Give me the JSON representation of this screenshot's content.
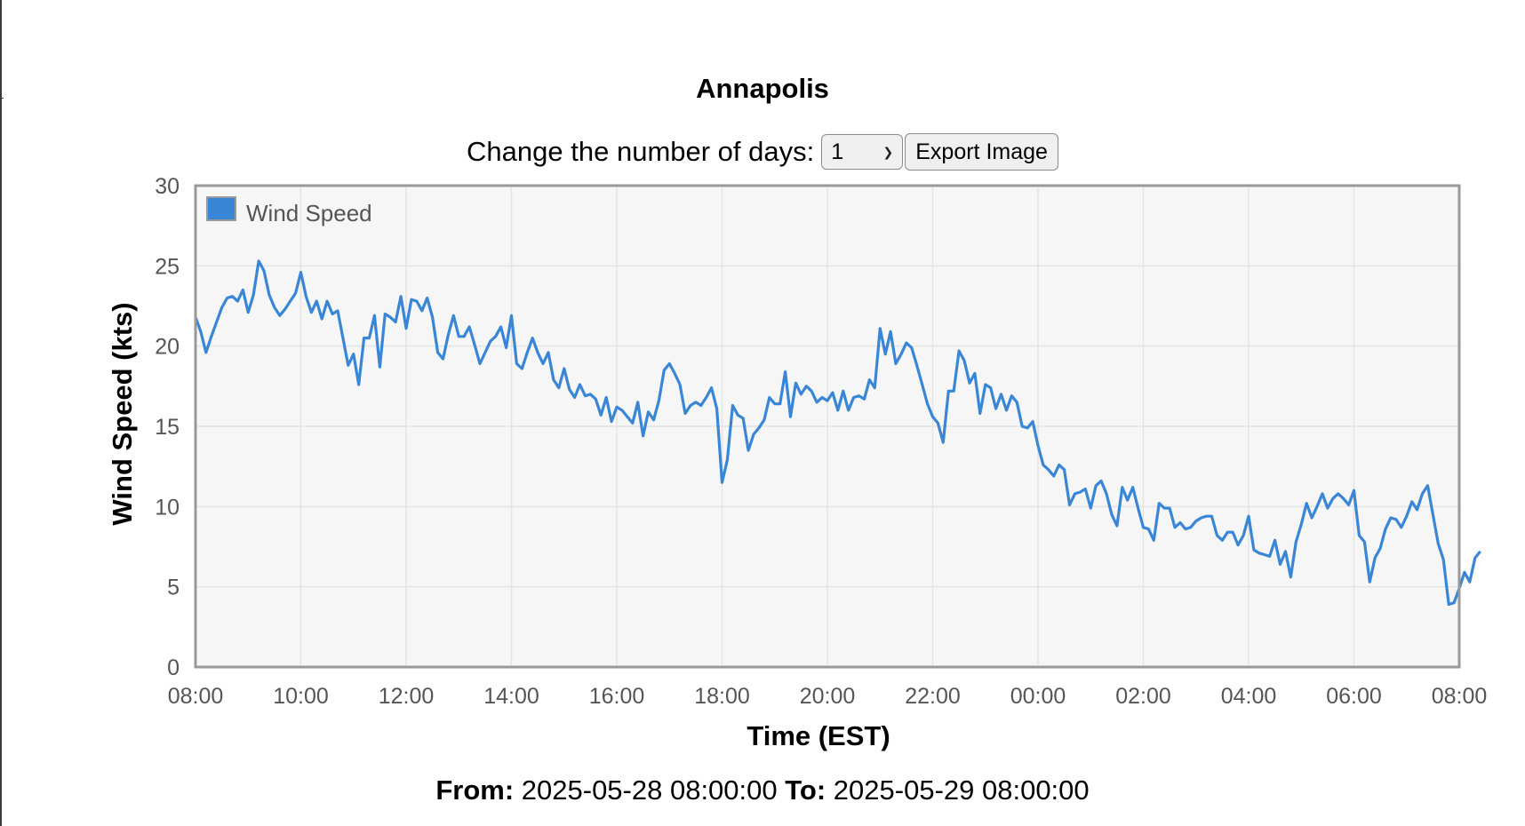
{
  "page": {
    "title": "Annapolis",
    "controls_label": "Change the number of days:",
    "days_select": {
      "selected": "1"
    },
    "export_label": "Export Image",
    "from_label": "From:",
    "from_value": "2025-05-28 08:00:00",
    "to_label": "To:",
    "to_value": "2025-05-29 08:00:00"
  },
  "chart_data": {
    "type": "line",
    "xlabel": "Time (EST)",
    "ylabel": "Wind Speed (kts)",
    "ylim": [
      0,
      30
    ],
    "yticks": [
      0,
      5,
      10,
      15,
      20,
      25,
      30
    ],
    "xlim": [
      "2025-05-28 08:00",
      "2025-05-29 08:00"
    ],
    "xtick_labels": [
      "08:00",
      "10:00",
      "12:00",
      "14:00",
      "16:00",
      "18:00",
      "20:00",
      "22:00",
      "00:00",
      "02:00",
      "04:00",
      "06:00",
      "08:00"
    ],
    "grid": true,
    "legend": {
      "position": "top-left",
      "entries": [
        "Wind Speed"
      ]
    },
    "colors": {
      "series": "#3a86d6",
      "plot_bg": "#f6f6f6",
      "frame": "#999999"
    },
    "series": [
      {
        "name": "Wind Speed",
        "x_start": "2025-05-28 08:00",
        "interval_minutes": 6,
        "values": [
          21.8,
          20.9,
          19.6,
          20.6,
          21.5,
          22.4,
          23.0,
          23.1,
          22.8,
          23.5,
          22.1,
          23.2,
          25.3,
          24.7,
          23.2,
          22.4,
          21.9,
          22.3,
          22.8,
          23.3,
          24.6,
          23.1,
          22.1,
          22.8,
          21.7,
          22.8,
          22.0,
          22.2,
          20.5,
          18.8,
          19.5,
          17.6,
          20.5,
          20.5,
          21.9,
          18.7,
          22.0,
          21.8,
          21.5,
          23.1,
          21.1,
          22.9,
          22.8,
          22.2,
          23.0,
          21.8,
          19.6,
          19.2,
          20.7,
          21.9,
          20.6,
          20.6,
          21.2,
          20.1,
          18.9,
          19.6,
          20.3,
          20.6,
          21.2,
          19.9,
          21.9,
          18.9,
          18.6,
          19.6,
          20.5,
          19.6,
          18.9,
          19.6,
          17.9,
          17.4,
          18.6,
          17.3,
          16.8,
          17.6,
          16.9,
          17.0,
          16.7,
          15.7,
          16.8,
          15.3,
          16.2,
          16.0,
          15.6,
          15.2,
          16.5,
          14.4,
          15.9,
          15.4,
          16.6,
          18.5,
          18.9,
          18.3,
          17.6,
          15.8,
          16.3,
          16.5,
          16.3,
          16.8,
          17.4,
          16.1,
          11.5,
          12.9,
          16.3,
          15.7,
          15.5,
          13.5,
          14.5,
          14.9,
          15.4,
          16.8,
          16.4,
          16.4,
          18.4,
          15.6,
          17.7,
          17.0,
          17.5,
          17.2,
          16.5,
          16.8,
          16.6,
          17.1,
          16.0,
          17.2,
          16.0,
          16.8,
          16.9,
          16.7,
          17.9,
          17.4,
          21.1,
          19.5,
          20.9,
          18.9,
          19.5,
          20.2,
          19.9,
          18.8,
          17.6,
          16.4,
          15.6,
          15.2,
          14.0,
          17.2,
          17.2,
          19.7,
          19.1,
          17.7,
          18.3,
          15.8,
          17.6,
          17.4,
          16.1,
          17.0,
          16.0,
          16.9,
          16.5,
          15.0,
          14.9,
          15.3,
          13.8,
          12.6,
          12.3,
          11.9,
          12.6,
          12.3,
          10.1,
          10.8,
          10.9,
          11.1,
          9.9,
          11.3,
          11.6,
          10.8,
          9.5,
          8.8,
          11.2,
          10.4,
          11.2,
          9.9,
          8.7,
          8.6,
          7.9,
          10.2,
          9.9,
          9.9,
          8.7,
          9.0,
          8.6,
          8.7,
          9.1,
          9.3,
          9.4,
          9.4,
          8.2,
          7.9,
          8.4,
          8.4,
          7.6,
          8.2,
          9.4,
          7.3,
          7.1,
          7.0,
          6.9,
          7.9,
          6.4,
          7.2,
          5.6,
          7.8,
          8.9,
          10.2,
          9.3,
          10.0,
          10.8,
          9.9,
          10.5,
          10.8,
          10.5,
          10.1,
          11.0,
          8.2,
          7.8,
          5.3,
          6.8,
          7.4,
          8.6,
          9.3,
          9.2,
          8.7,
          9.4,
          10.3,
          9.8,
          10.8,
          11.3,
          9.5,
          7.7,
          6.7,
          3.9,
          4.0,
          4.9,
          5.9,
          5.3,
          6.8,
          7.2
        ]
      }
    ]
  }
}
